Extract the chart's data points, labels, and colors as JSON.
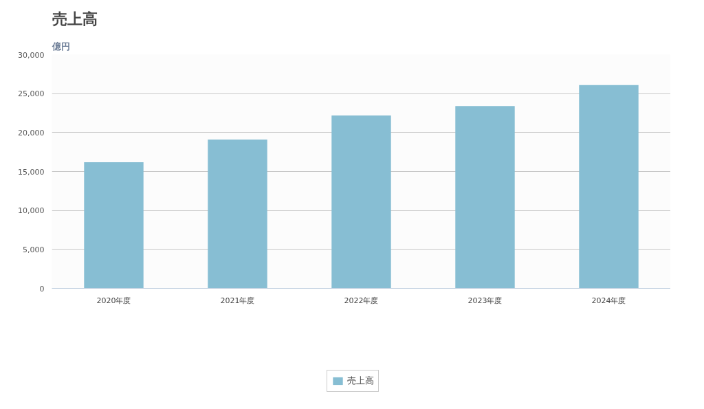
{
  "chart_data": {
    "type": "bar",
    "title": "売上高",
    "ylabel": "億円",
    "categories": [
      "2020年度",
      "2021年度",
      "2022年度",
      "2023年度",
      "2024年度"
    ],
    "series": [
      {
        "name": "売上高",
        "color": "#87bed3",
        "values": [
          16200,
          19100,
          22200,
          23400,
          26100
        ]
      }
    ],
    "ylim": [
      0,
      30000
    ],
    "yticks": [
      0,
      {
        "value": 5000,
        "label": "5,000"
      },
      {
        "value": 10000,
        "label": "10,000"
      },
      {
        "value": 15000,
        "label": "15,000"
      },
      {
        "value": 20000,
        "label": "20,000"
      },
      {
        "value": 25000,
        "label": "25,000"
      },
      {
        "value": 30000,
        "label": "30,000"
      }
    ],
    "grid": "y",
    "legend": "bottom"
  }
}
